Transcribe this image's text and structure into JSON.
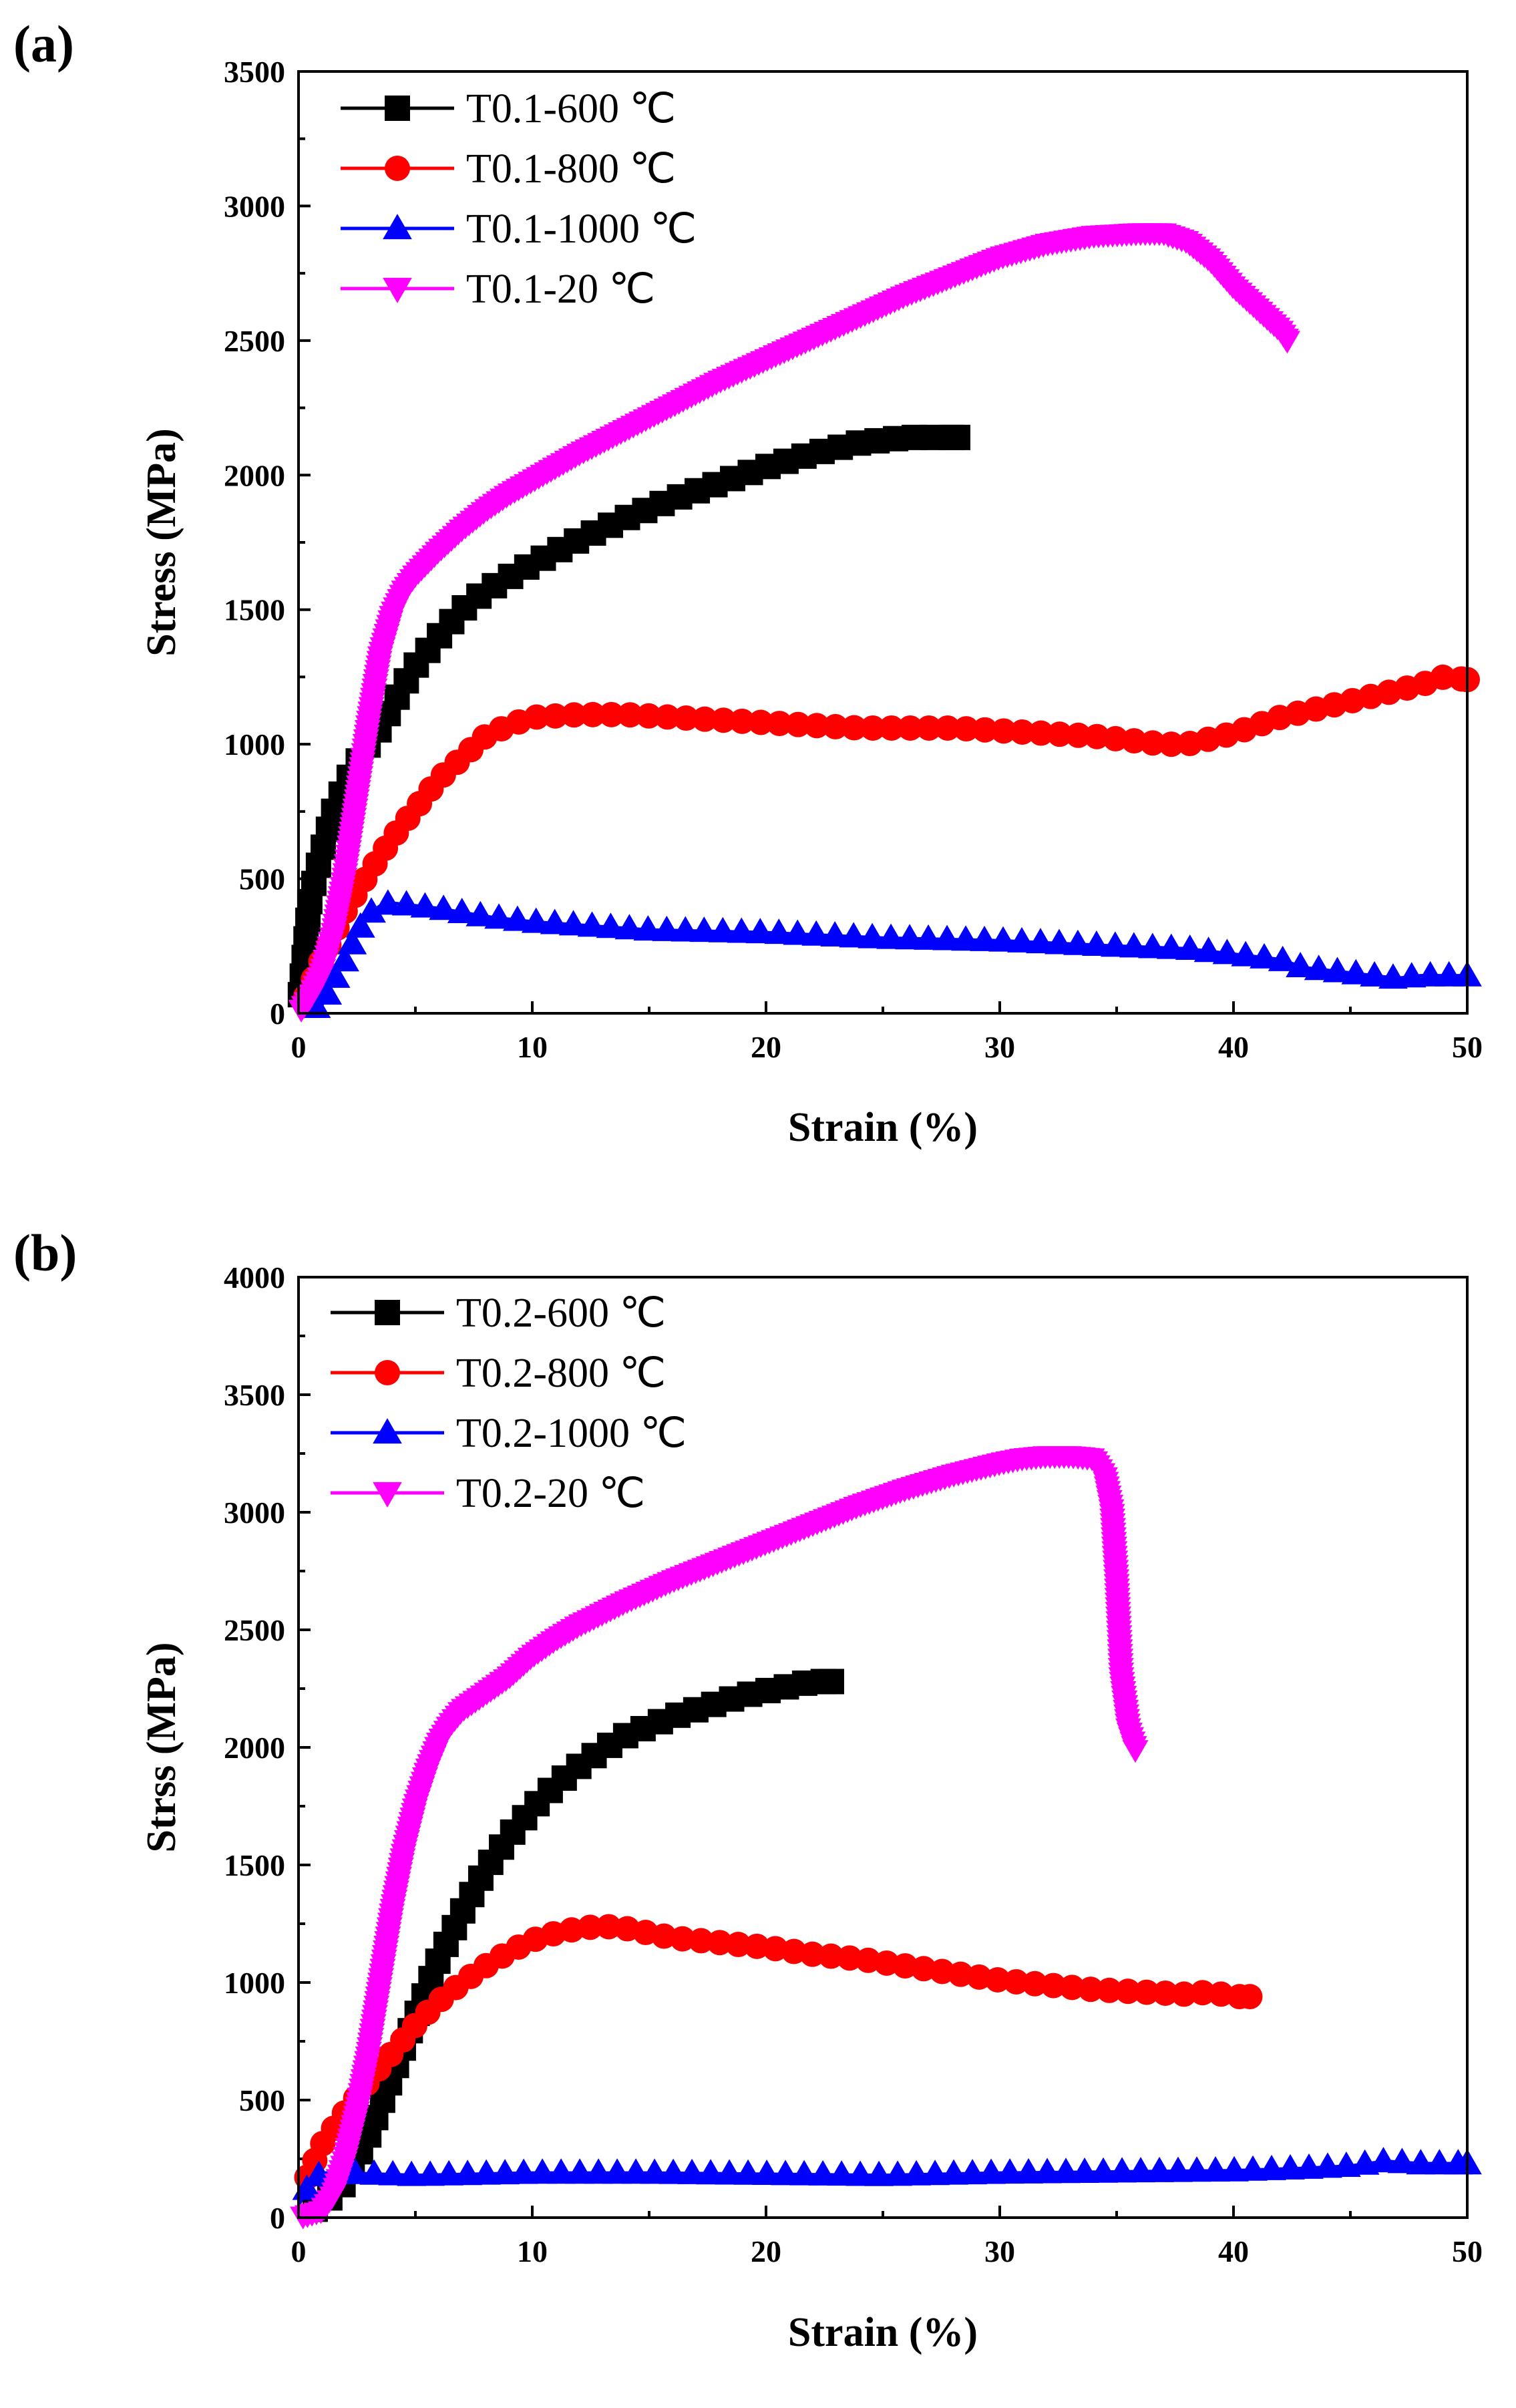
{
  "chart_data": [
    {
      "type": "line",
      "panel_label": "(a)",
      "xlabel": "Strain (%)",
      "ylabel": "Stress (MPa)",
      "xlim": [
        0,
        50
      ],
      "ylim": [
        0,
        3500
      ],
      "xticks": [
        0,
        10,
        20,
        30,
        40,
        50
      ],
      "yticks": [
        0,
        500,
        1000,
        1500,
        2000,
        2500,
        3000,
        3500
      ],
      "legend_position": "top-left",
      "series": [
        {
          "name": "T0.1-600 ℃",
          "color": "#000000",
          "marker": "square",
          "x": [
            0,
            0.5,
            1,
            1.5,
            2,
            2.5,
            3,
            3.5,
            4,
            4.5,
            5,
            6,
            7,
            8,
            9,
            10,
            12,
            14,
            16,
            18,
            20,
            22,
            24,
            26,
            27,
            28.2
          ],
          "y": [
            0,
            430,
            600,
            750,
            850,
            930,
            1000,
            1060,
            1140,
            1220,
            1290,
            1400,
            1500,
            1570,
            1620,
            1670,
            1760,
            1840,
            1910,
            1970,
            2030,
            2080,
            2120,
            2140,
            2140,
            2140
          ]
        },
        {
          "name": "T0.1-800 ℃",
          "color": "#ff0000",
          "marker": "circle",
          "x": [
            0,
            1,
            2,
            3,
            4,
            5,
            6,
            7,
            8,
            9,
            10,
            12,
            14,
            16,
            18,
            20,
            22,
            24,
            26,
            28,
            30,
            32,
            34,
            36,
            37,
            38,
            39,
            40,
            41,
            42,
            43,
            44,
            45,
            46,
            47,
            48,
            49,
            50
          ],
          "y": [
            0,
            200,
            380,
            520,
            650,
            760,
            870,
            950,
            1030,
            1070,
            1100,
            1110,
            1110,
            1100,
            1090,
            1080,
            1070,
            1060,
            1060,
            1060,
            1050,
            1040,
            1030,
            1010,
            1000,
            1000,
            1020,
            1040,
            1070,
            1100,
            1120,
            1140,
            1160,
            1180,
            1200,
            1220,
            1250,
            1240
          ]
        },
        {
          "name": "T0.1-1000 ℃",
          "color": "#0000ff",
          "marker": "triangle-up",
          "x": [
            0,
            1,
            1.5,
            2,
            2.5,
            3,
            3.5,
            4,
            5,
            6,
            8,
            10,
            15,
            20,
            25,
            30,
            35,
            38,
            40,
            42,
            43,
            44,
            46,
            47,
            48,
            50
          ],
          "y": [
            0,
            30,
            120,
            200,
            300,
            370,
            400,
            410,
            400,
            390,
            360,
            340,
            310,
            300,
            280,
            270,
            250,
            240,
            220,
            200,
            170,
            160,
            140,
            130,
            140,
            140
          ]
        },
        {
          "name": "T0.1-20 ℃",
          "color": "#ff00ff",
          "marker": "triangle-down",
          "x": [
            0,
            0.5,
            1,
            1.5,
            2,
            2.5,
            3,
            3.5,
            4,
            4.5,
            5,
            6,
            7,
            8,
            9,
            10,
            12,
            14,
            16,
            18,
            20,
            22,
            24,
            26,
            28,
            30,
            32,
            34,
            36,
            37,
            38,
            39,
            40,
            41,
            42,
            42.3
          ],
          "y": [
            0,
            60,
            150,
            300,
            520,
            800,
            1080,
            1330,
            1480,
            1570,
            1630,
            1720,
            1800,
            1870,
            1930,
            1980,
            2080,
            2170,
            2260,
            2350,
            2430,
            2510,
            2590,
            2670,
            2740,
            2810,
            2860,
            2890,
            2900,
            2900,
            2870,
            2800,
            2700,
            2620,
            2540,
            2500
          ]
        }
      ]
    },
    {
      "type": "line",
      "panel_label": "(b)",
      "xlabel": "Strain (%)",
      "ylabel": "Strss (MPa)",
      "xlim": [
        0,
        50
      ],
      "ylim": [
        0,
        4000
      ],
      "xticks": [
        0,
        10,
        20,
        30,
        40,
        50
      ],
      "yticks": [
        0,
        500,
        1000,
        1500,
        2000,
        2500,
        3000,
        3500,
        4000
      ],
      "legend_position": "top-left",
      "series": [
        {
          "name": "T0.2-600 ℃",
          "color": "#000000",
          "marker": "square",
          "x": [
            0,
            1,
            2,
            3,
            4,
            5,
            6,
            7,
            8,
            9,
            10,
            11,
            12,
            13,
            14,
            15,
            16,
            17,
            18,
            19,
            20,
            21,
            22,
            22.8
          ],
          "y": [
            0,
            50,
            150,
            350,
            600,
            850,
            1100,
            1300,
            1480,
            1620,
            1740,
            1840,
            1920,
            1990,
            2050,
            2090,
            2130,
            2160,
            2190,
            2220,
            2240,
            2260,
            2280,
            2280
          ]
        },
        {
          "name": "T0.2-800 ℃",
          "color": "#ff0000",
          "marker": "circle",
          "x": [
            0,
            0.5,
            1,
            2,
            3,
            4,
            5,
            6,
            7,
            8,
            9,
            10,
            11,
            12,
            13,
            14,
            16,
            18,
            20,
            22,
            24,
            26,
            28,
            30,
            32,
            34,
            36,
            38,
            39,
            40,
            40.7
          ],
          "y": [
            100,
            200,
            310,
            450,
            580,
            700,
            820,
            920,
            1000,
            1070,
            1130,
            1180,
            1210,
            1230,
            1240,
            1230,
            1190,
            1170,
            1150,
            1120,
            1100,
            1070,
            1040,
            1010,
            990,
            970,
            960,
            950,
            960,
            940,
            940
          ]
        },
        {
          "name": "T0.2-1000 ℃",
          "color": "#0000ff",
          "marker": "triangle-up",
          "x": [
            0,
            0.5,
            1,
            2,
            5,
            10,
            15,
            20,
            25,
            30,
            35,
            40,
            43,
            45,
            46.5,
            48,
            50
          ],
          "y": [
            50,
            150,
            190,
            190,
            180,
            190,
            190,
            185,
            180,
            190,
            195,
            200,
            210,
            220,
            240,
            230,
            230
          ]
        },
        {
          "name": "T0.2-20 ℃",
          "color": "#ff00ff",
          "marker": "triangle-down",
          "x": [
            0,
            1,
            1.5,
            2,
            2.5,
            3,
            3.5,
            4,
            4.5,
            5,
            5.5,
            6,
            6.5,
            7,
            8,
            9,
            10,
            11,
            12,
            14,
            16,
            18,
            20,
            22,
            24,
            26,
            28,
            30,
            31,
            32,
            33,
            34,
            34.5,
            34.8,
            35,
            35.2,
            35.5,
            35.8
          ],
          "y": [
            0,
            30,
            100,
            250,
            450,
            700,
            1000,
            1300,
            1550,
            1750,
            1900,
            2020,
            2100,
            2160,
            2230,
            2300,
            2390,
            2460,
            2520,
            2620,
            2710,
            2790,
            2870,
            2950,
            3030,
            3100,
            3160,
            3210,
            3230,
            3240,
            3240,
            3230,
            3150,
            3000,
            2700,
            2300,
            2080,
            1990
          ]
        }
      ]
    }
  ]
}
